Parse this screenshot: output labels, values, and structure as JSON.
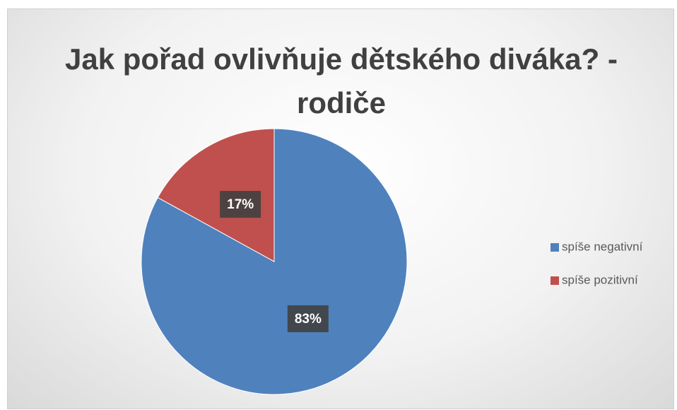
{
  "chart_data": {
    "type": "pie",
    "title": "Jak pořad ovlivňuje dětského diváka? - rodiče",
    "categories": [
      "spíše negativní",
      "spíše pozitivní"
    ],
    "values": [
      83,
      17
    ],
    "value_labels": [
      "83%",
      "17%"
    ],
    "colors": [
      "#4f81bd",
      "#c0504d"
    ],
    "legend": "right"
  }
}
